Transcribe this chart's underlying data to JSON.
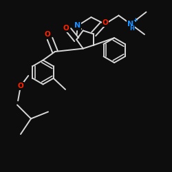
{
  "background": "#0d0d0d",
  "bond_color": "#d8d8d8",
  "bond_width": 1.4,
  "atom_colors": {
    "N": "#1a8fff",
    "O": "#ff2200",
    "C": "#d8d8d8"
  },
  "scale": 1.0
}
